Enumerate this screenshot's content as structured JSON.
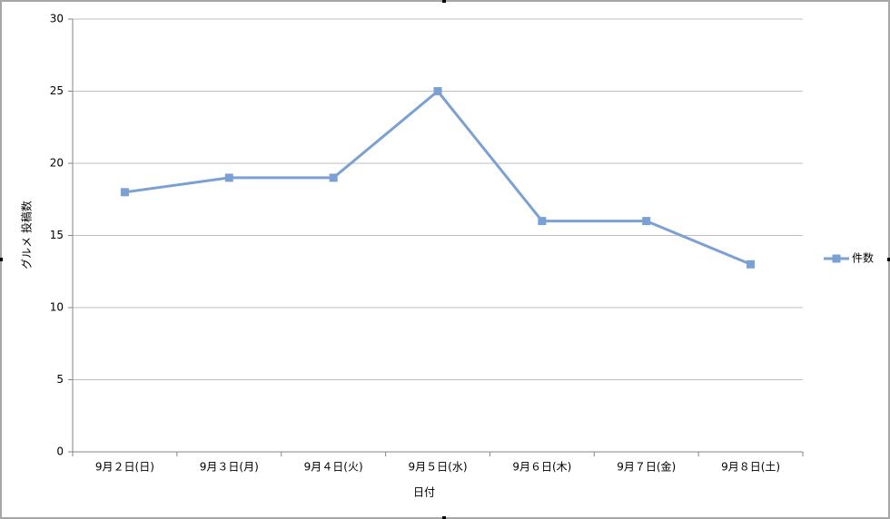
{
  "chart_data": {
    "type": "line",
    "x_label": "日付",
    "y_label": "グルメ 投稿数",
    "categories": [
      "9月２日(日)",
      "9月３日(月)",
      "9月４日(火)",
      "9月５日(水)",
      "9月６日(木)",
      "9月７日(金)",
      "9月８日(土)"
    ],
    "series": [
      {
        "name": "件数",
        "color": "#7ba0d4",
        "values": [
          18,
          19,
          19,
          25,
          16,
          16,
          13
        ]
      }
    ],
    "ylim": [
      0,
      30
    ],
    "yticks": [
      0,
      5,
      10,
      15,
      20,
      25,
      30
    ],
    "grid": true,
    "legend": "right"
  }
}
